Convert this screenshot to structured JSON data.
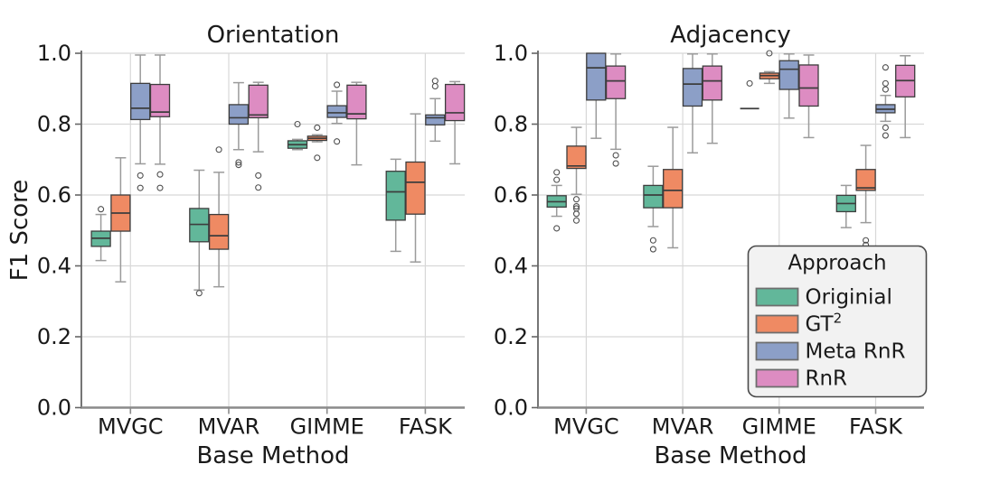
{
  "chart_data": {
    "type": "boxplot",
    "title": "",
    "xlabel": "Base Method",
    "ylabel": "F1 Score",
    "ylim": [
      0.0,
      1.0
    ],
    "yticks": [
      "0.0",
      "0.2",
      "0.4",
      "0.6",
      "0.8",
      "1.0"
    ],
    "ytick_values": [
      0.0,
      0.2,
      0.4,
      0.6,
      0.8,
      1.0
    ],
    "grid": true,
    "categories": [
      "MVGC",
      "MVAR",
      "GIMME",
      "FASK"
    ],
    "approaches": [
      {
        "key": "originial",
        "label": "Originial",
        "superscript": "",
        "color": "#62b79a"
      },
      {
        "key": "gt2",
        "label": "GT",
        "superscript": "2",
        "color": "#ef8a63"
      },
      {
        "key": "meta-rnr",
        "label": "Meta RnR",
        "superscript": "",
        "color": "#8c9fc7"
      },
      {
        "key": "rnr",
        "label": "RnR",
        "superscript": "",
        "color": "#dd8cc2"
      }
    ],
    "legend": {
      "title": "Approach",
      "position": "lower right of second panel"
    },
    "panels": [
      {
        "title": "Orientation",
        "groups": [
          {
            "category": "MVGC",
            "boxes": [
              {
                "approach": "Originial",
                "whislo": 0.415,
                "q1": 0.455,
                "med": 0.478,
                "q3": 0.498,
                "whishi": 0.545,
                "fliers": [
                  0.56
                ]
              },
              {
                "approach": "GT2",
                "whislo": 0.355,
                "q1": 0.498,
                "med": 0.549,
                "q3": 0.6,
                "whishi": 0.705,
                "fliers": []
              },
              {
                "approach": "Meta RnR",
                "whislo": 0.688,
                "q1": 0.813,
                "med": 0.845,
                "q3": 0.915,
                "whishi": 0.995,
                "fliers": [
                  0.655,
                  0.62
                ]
              },
              {
                "approach": "RnR",
                "whislo": 0.687,
                "q1": 0.821,
                "med": 0.834,
                "q3": 0.912,
                "whishi": 0.995,
                "fliers": [
                  0.658,
                  0.62
                ]
              }
            ]
          },
          {
            "category": "MVAR",
            "boxes": [
              {
                "approach": "Originial",
                "whislo": 0.332,
                "q1": 0.468,
                "med": 0.517,
                "q3": 0.562,
                "whishi": 0.67,
                "fliers": [
                  0.323
                ]
              },
              {
                "approach": "GT2",
                "whislo": 0.341,
                "q1": 0.447,
                "med": 0.485,
                "q3": 0.545,
                "whishi": 0.664,
                "fliers": [
                  0.728
                ]
              },
              {
                "approach": "Meta RnR",
                "whislo": 0.728,
                "q1": 0.8,
                "med": 0.818,
                "q3": 0.855,
                "whishi": 0.917,
                "fliers": [
                  0.692,
                  0.685
                ]
              },
              {
                "approach": "RnR",
                "whislo": 0.722,
                "q1": 0.818,
                "med": 0.826,
                "q3": 0.91,
                "whishi": 0.918,
                "fliers": [
                  0.655,
                  0.621
                ]
              }
            ]
          },
          {
            "category": "GIMME",
            "boxes": [
              {
                "approach": "Originial",
                "whislo": 0.728,
                "q1": 0.732,
                "med": 0.742,
                "q3": 0.753,
                "whishi": 0.757,
                "fliers": [
                  0.8
                ]
              },
              {
                "approach": "GT2",
                "whislo": 0.75,
                "q1": 0.754,
                "med": 0.76,
                "q3": 0.766,
                "whishi": 0.77,
                "fliers": [
                  0.79,
                  0.705
                ]
              },
              {
                "approach": "Meta RnR",
                "whislo": 0.802,
                "q1": 0.819,
                "med": 0.832,
                "q3": 0.852,
                "whishi": 0.893,
                "fliers": [
                  0.911,
                  0.751
                ]
              },
              {
                "approach": "RnR",
                "whislo": 0.685,
                "q1": 0.815,
                "med": 0.829,
                "q3": 0.91,
                "whishi": 0.918,
                "fliers": []
              }
            ]
          },
          {
            "category": "FASK",
            "boxes": [
              {
                "approach": "Originial",
                "whislo": 0.441,
                "q1": 0.529,
                "med": 0.609,
                "q3": 0.667,
                "whishi": 0.701,
                "fliers": []
              },
              {
                "approach": "GT2",
                "whislo": 0.411,
                "q1": 0.546,
                "med": 0.636,
                "q3": 0.693,
                "whishi": 0.829,
                "fliers": []
              },
              {
                "approach": "Meta RnR",
                "whislo": 0.752,
                "q1": 0.798,
                "med": 0.818,
                "q3": 0.826,
                "whishi": 0.872,
                "fliers": [
                  0.922,
                  0.907
                ]
              },
              {
                "approach": "RnR",
                "whislo": 0.688,
                "q1": 0.81,
                "med": 0.832,
                "q3": 0.912,
                "whishi": 0.92,
                "fliers": []
              }
            ]
          }
        ]
      },
      {
        "title": "Adjacency",
        "groups": [
          {
            "category": "MVGC",
            "boxes": [
              {
                "approach": "Originial",
                "whislo": 0.54,
                "q1": 0.566,
                "med": 0.581,
                "q3": 0.598,
                "whishi": 0.627,
                "fliers": [
                  0.664,
                  0.643,
                  0.506
                ]
              },
              {
                "approach": "GT2",
                "whislo": 0.602,
                "q1": 0.675,
                "med": 0.682,
                "q3": 0.738,
                "whishi": 0.791,
                "fliers": [
                  0.588,
                  0.568,
                  0.562,
                  0.547,
                  0.528
                ]
              },
              {
                "approach": "Meta RnR",
                "whislo": 0.76,
                "q1": 0.868,
                "med": 0.959,
                "q3": 1.0,
                "whishi": 1.0,
                "fliers": []
              },
              {
                "approach": "RnR",
                "whislo": 0.729,
                "q1": 0.872,
                "med": 0.922,
                "q3": 0.964,
                "whishi": 0.998,
                "fliers": [
                  0.712,
                  0.689
                ]
              }
            ]
          },
          {
            "category": "MVAR",
            "boxes": [
              {
                "approach": "Originial",
                "whislo": 0.511,
                "q1": 0.564,
                "med": 0.6,
                "q3": 0.627,
                "whishi": 0.681,
                "fliers": [
                  0.472,
                  0.447
                ]
              },
              {
                "approach": "GT2",
                "whislo": 0.451,
                "q1": 0.564,
                "med": 0.613,
                "q3": 0.672,
                "whishi": 0.791,
                "fliers": []
              },
              {
                "approach": "Meta RnR",
                "whislo": 0.719,
                "q1": 0.851,
                "med": 0.913,
                "q3": 0.957,
                "whishi": 0.998,
                "fliers": []
              },
              {
                "approach": "RnR",
                "whislo": 0.746,
                "q1": 0.868,
                "med": 0.922,
                "q3": 0.964,
                "whishi": 0.998,
                "fliers": []
              }
            ]
          },
          {
            "category": "GIMME",
            "boxes": [
              {
                "approach": "Originial",
                "whislo": 0.844,
                "q1": 0.844,
                "med": 0.844,
                "q3": 0.844,
                "whishi": 0.844,
                "fliers": [
                  0.915
                ]
              },
              {
                "approach": "GT2",
                "whislo": 0.915,
                "q1": 0.928,
                "med": 0.937,
                "q3": 0.944,
                "whishi": 0.948,
                "fliers": [
                  1.0
                ]
              },
              {
                "approach": "Meta RnR",
                "whislo": 0.817,
                "q1": 0.898,
                "med": 0.955,
                "q3": 0.979,
                "whishi": 0.998,
                "fliers": []
              },
              {
                "approach": "RnR",
                "whislo": 0.762,
                "q1": 0.851,
                "med": 0.902,
                "q3": 0.967,
                "whishi": 0.995,
                "fliers": []
              }
            ]
          },
          {
            "category": "FASK",
            "boxes": [
              {
                "approach": "Originial",
                "whislo": 0.508,
                "q1": 0.553,
                "med": 0.576,
                "q3": 0.599,
                "whishi": 0.627,
                "fliers": []
              },
              {
                "approach": "GT2",
                "whislo": 0.522,
                "q1": 0.613,
                "med": 0.62,
                "q3": 0.672,
                "whishi": 0.74,
                "fliers": [
                  0.472,
                  0.459
                ]
              },
              {
                "approach": "Meta RnR",
                "whislo": 0.808,
                "q1": 0.832,
                "med": 0.842,
                "q3": 0.855,
                "whishi": 0.881,
                "fliers": [
                  0.96,
                  0.915,
                  0.898,
                  0.79,
                  0.768
                ]
              },
              {
                "approach": "RnR",
                "whislo": 0.762,
                "q1": 0.877,
                "med": 0.923,
                "q3": 0.966,
                "whishi": 0.993,
                "fliers": []
              }
            ]
          }
        ]
      }
    ],
    "style_colors": {
      "grid": "#d8d8d8",
      "box_edge": "#3d3d3d",
      "whisker": "#9b9b9b",
      "flier_edge": "#4f4f4f",
      "left_spine": "#666666",
      "bottom_spine": "#8a8a8a",
      "legend_bg": "#f2f2f2",
      "legend_border": "#4a4a4a",
      "text": "#1a1a1a"
    }
  }
}
